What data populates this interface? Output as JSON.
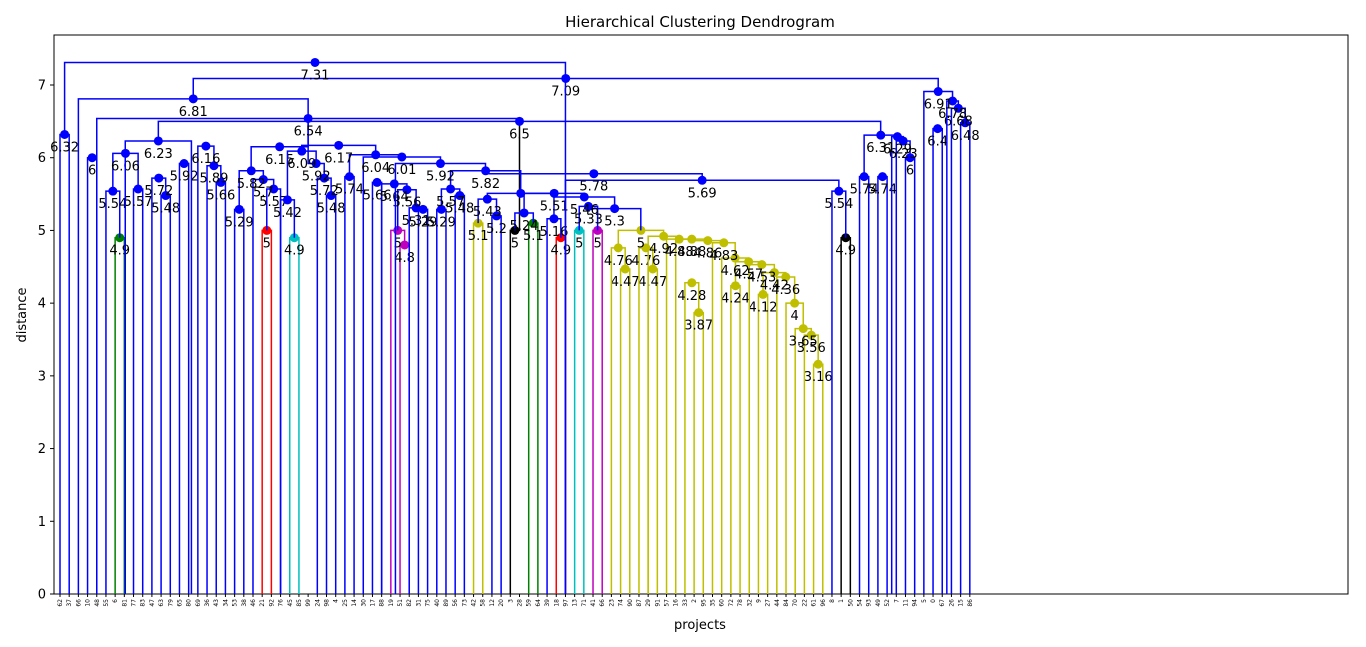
{
  "chart_data": {
    "type": "dendrogram",
    "title": "Hierarchical Clustering Dendrogram",
    "xlabel": "projects",
    "ylabel": "distance",
    "ylim": [
      0,
      7.7
    ],
    "yticks": [
      0,
      1,
      2,
      3,
      4,
      5,
      6,
      7
    ],
    "leaves": [
      "62",
      "37",
      "66",
      "10",
      "48",
      "55",
      "6",
      "81",
      "77",
      "83",
      "47",
      "63",
      "79",
      "65",
      "80",
      "69",
      "36",
      "43",
      "34",
      "53",
      "38",
      "46",
      "21",
      "92",
      "76",
      "45",
      "85",
      "99",
      "24",
      "98",
      "4",
      "25",
      "14",
      "30",
      "17",
      "88",
      "19",
      "51",
      "82",
      "31",
      "75",
      "40",
      "89",
      "56",
      "73",
      "42",
      "58",
      "12",
      "20",
      "3",
      "28",
      "59",
      "64",
      "39",
      "18",
      "97",
      "13",
      "71",
      "41",
      "66",
      "23",
      "74",
      "90",
      "87",
      "29",
      "91",
      "57",
      "16",
      "33",
      "2",
      "95",
      "35",
      "60",
      "72",
      "78",
      "32",
      "9",
      "27",
      "44",
      "84",
      "70",
      "22",
      "61",
      "96",
      "8",
      "1",
      "50",
      "54",
      "93",
      "49",
      "52",
      "7",
      "11",
      "94",
      "5",
      "0",
      "67",
      "26",
      "15",
      "86"
    ],
    "colors": {
      "b": "#0000ff",
      "g": "#008000",
      "r": "#ff0000",
      "c": "#00bfbf",
      "m": "#bf00bf",
      "y": "#bfbf00",
      "k": "#000000"
    },
    "links": [
      {
        "i": 6,
        "j": 7,
        "h": 4.9,
        "c": "g",
        "label": "4.9"
      },
      {
        "i": 22,
        "j": 23,
        "h": 5.0,
        "c": "r",
        "label": "5"
      },
      {
        "i": 25,
        "j": 26,
        "h": 4.9,
        "c": "c",
        "label": "4.9"
      },
      {
        "i": 37,
        "j": 38,
        "h": 4.8,
        "c": "m",
        "label": "4.8"
      },
      {
        "i": 36,
        "j": 37.5,
        "h": 5.0,
        "c": "m",
        "label": "5"
      },
      {
        "i": 45,
        "j": 46,
        "h": 5.1,
        "c": "y",
        "label": "5.1"
      },
      {
        "i": 49,
        "j": 50,
        "h": 5.0,
        "c": "k",
        "label": "5"
      },
      {
        "i": 51,
        "j": 52,
        "h": 5.1,
        "c": "g",
        "label": "5.1"
      },
      {
        "i": 54,
        "j": 55,
        "h": 4.9,
        "c": "r",
        "label": "4.9"
      },
      {
        "i": 56,
        "j": 57,
        "h": 5.0,
        "c": "c",
        "label": "5"
      },
      {
        "i": 58,
        "j": 59,
        "h": 5.0,
        "c": "m",
        "label": "5"
      },
      {
        "i": 61,
        "j": 62,
        "h": 4.47,
        "c": "y",
        "label": "4.47"
      },
      {
        "i": 60,
        "j": 61.5,
        "h": 4.76,
        "c": "y",
        "label": "4.76"
      },
      {
        "i": 64,
        "j": 65,
        "h": 4.47,
        "c": "y",
        "label": "4.47"
      },
      {
        "i": 63,
        "j": 64.5,
        "h": 4.76,
        "c": "y",
        "label": "4.76"
      },
      {
        "i": 69,
        "j": 70,
        "h": 3.87,
        "c": "y",
        "label": "3.87"
      },
      {
        "i": 68,
        "j": 69.5,
        "h": 4.28,
        "c": "y",
        "label": "4.28"
      },
      {
        "i": 73,
        "j": 74,
        "h": 4.24,
        "c": "y",
        "label": "4.24"
      },
      {
        "i": 76,
        "j": 77,
        "h": 4.12,
        "c": "y",
        "label": "4.12"
      },
      {
        "i": 82,
        "j": 83,
        "h": 3.16,
        "c": "y",
        "label": "3.16"
      },
      {
        "i": 81,
        "j": 82.5,
        "h": 3.56,
        "c": "y",
        "label": "3.56"
      },
      {
        "i": 80,
        "j": 81.75,
        "h": 3.65,
        "c": "y",
        "label": "3.65"
      },
      {
        "i": 79,
        "j": 80.875,
        "h": 4.0,
        "c": "y",
        "label": "4"
      },
      {
        "i": 78,
        "j": 79.94,
        "h": 4.36,
        "c": "y",
        "label": "4.36"
      },
      {
        "i": 76.5,
        "j": 78.97,
        "h": 4.42,
        "c": "y",
        "label": "4.42"
      },
      {
        "i": 75,
        "j": 77.73,
        "h": 4.53,
        "c": "y",
        "label": "4.53"
      },
      {
        "i": 73.5,
        "j": 76.37,
        "h": 4.57,
        "c": "y",
        "label": "4.57"
      },
      {
        "i": 72,
        "j": 74.93,
        "h": 4.62,
        "c": "y",
        "label": "4.62"
      },
      {
        "i": 71,
        "j": 73.47,
        "h": 4.83,
        "c": "y",
        "label": "4.83"
      },
      {
        "i": 68.75,
        "j": 72.23,
        "h": 4.86,
        "c": "y",
        "label": "4.86"
      },
      {
        "i": 67,
        "j": 70.49,
        "h": 4.88,
        "c": "y",
        "label": "4.88"
      },
      {
        "i": 66,
        "j": 68.75,
        "h": 4.88,
        "c": "y",
        "label": "4.88"
      },
      {
        "i": 64.0,
        "j": 67.37,
        "h": 4.92,
        "c": "y",
        "label": "4.92"
      },
      {
        "i": 60.75,
        "j": 65.68,
        "h": 5.0,
        "c": "y",
        "label": "5"
      },
      {
        "i": 85,
        "j": 86,
        "h": 4.9,
        "c": "k",
        "label": "4.9"
      },
      {
        "i": 0,
        "j": 1,
        "h": 6.32,
        "c": "b",
        "label": "6.32"
      },
      {
        "i": 3,
        "j": 4,
        "h": 6.0,
        "c": "b",
        "label": "6"
      },
      {
        "i": 5,
        "j": 6.5,
        "h": 5.54,
        "c": "b",
        "label": "5.54"
      },
      {
        "i": 8,
        "j": 9,
        "h": 5.57,
        "c": "b",
        "label": "5.57"
      },
      {
        "i": 11,
        "j": 12,
        "h": 5.48,
        "c": "b",
        "label": "5.48"
      },
      {
        "i": 10,
        "j": 11.5,
        "h": 5.72,
        "c": "b",
        "label": "5.72"
      },
      {
        "i": 5.75,
        "j": 8.5,
        "h": 6.06,
        "c": "b",
        "label": "6.06"
      },
      {
        "i": 13,
        "j": 14,
        "h": 5.92,
        "c": "b",
        "label": "5.92"
      },
      {
        "i": 17,
        "j": 18,
        "h": 5.66,
        "c": "b",
        "label": "5.66"
      },
      {
        "i": 16,
        "j": 17.5,
        "h": 5.89,
        "c": "b",
        "label": "5.89"
      },
      {
        "i": 15,
        "j": 16.75,
        "h": 6.16,
        "c": "b",
        "label": "6.16"
      },
      {
        "i": 19,
        "j": 20,
        "h": 5.29,
        "c": "b",
        "label": "5.29"
      },
      {
        "i": 22.5,
        "j": 24,
        "h": 5.57,
        "c": "b",
        "label": "5.57"
      },
      {
        "i": 21,
        "j": 23.25,
        "h": 5.7,
        "c": "b",
        "label": "5.7"
      },
      {
        "i": 19.5,
        "j": 22.125,
        "h": 5.82,
        "c": "b",
        "label": "5.82"
      },
      {
        "i": 20.8,
        "j": 27,
        "h": 6.15,
        "c": "b",
        "label": "6.15"
      },
      {
        "i": 24,
        "j": 25.5,
        "h": 5.42,
        "c": "b",
        "label": "5.42"
      },
      {
        "i": 29,
        "j": 30,
        "h": 5.48,
        "c": "b",
        "label": "5.48"
      },
      {
        "i": 28,
        "j": 29.5,
        "h": 5.72,
        "c": "b",
        "label": "5.72"
      },
      {
        "i": 27,
        "j": 28.75,
        "h": 5.92,
        "c": "b",
        "label": "5.92"
      },
      {
        "i": 24.75,
        "j": 27.87,
        "h": 6.09,
        "c": "b",
        "label": "6.09"
      },
      {
        "i": 31,
        "j": 32,
        "h": 5.74,
        "c": "b",
        "label": "5.74"
      },
      {
        "i": 34,
        "j": 35,
        "h": 5.66,
        "c": "b",
        "label": "5.66"
      },
      {
        "i": 39,
        "j": 40,
        "h": 5.29,
        "c": "b",
        "label": "5.29"
      },
      {
        "i": 38,
        "j": 39.5,
        "h": 5.31,
        "c": "b",
        "label": "5.31"
      },
      {
        "i": 36.75,
        "j": 38.75,
        "h": 5.56,
        "c": "b",
        "label": "5.56"
      },
      {
        "i": 35,
        "j": 37.75,
        "h": 5.64,
        "c": "b",
        "label": "5.64"
      },
      {
        "i": 41,
        "j": 42,
        "h": 5.29,
        "c": "b",
        "label": "5.29"
      },
      {
        "i": 43,
        "j": 44,
        "h": 5.48,
        "c": "b",
        "label": "5.48"
      },
      {
        "i": 41.5,
        "j": 43.5,
        "h": 5.57,
        "c": "b",
        "label": "5.57"
      },
      {
        "i": 47,
        "j": 48,
        "h": 5.2,
        "c": "b",
        "label": "5.2"
      },
      {
        "i": 45.5,
        "j": 47.5,
        "h": 5.43,
        "c": "b",
        "label": "5.43"
      },
      {
        "i": 49.5,
        "j": 51.5,
        "h": 5.24,
        "c": "b",
        "label": "5.24"
      },
      {
        "i": 53,
        "j": 54.5,
        "h": 5.16,
        "c": "b",
        "label": "5.16"
      },
      {
        "i": 56.5,
        "j": 58.5,
        "h": 5.33,
        "c": "b",
        "label": "5.33"
      },
      {
        "i": 57.5,
        "j": 63.2,
        "h": 5.3,
        "c": "b",
        "label": "5.3"
      },
      {
        "i": 53.75,
        "j": 60.35,
        "h": 5.46,
        "c": "b",
        "label": "5.46"
      },
      {
        "i": 50.5,
        "j": 57.05,
        "h": 5.51,
        "c": "b",
        "label": "5.51"
      },
      {
        "i": 46.5,
        "j": 53.77,
        "h": 5.51,
        "c": "b",
        "label": ""
      },
      {
        "i": 42.5,
        "j": 50.13,
        "h": 5.82,
        "c": "b",
        "label": "5.82"
      },
      {
        "i": 84,
        "j": 85.5,
        "h": 5.54,
        "c": "b",
        "label": "5.54"
      },
      {
        "i": 55,
        "j": 84.75,
        "h": 5.69,
        "c": "b",
        "label": "5.69"
      },
      {
        "i": 36.5,
        "j": 46.3,
        "h": 5.92,
        "c": "b",
        "label": "5.92"
      },
      {
        "i": 46.3,
        "j": 69.88,
        "h": 5.78,
        "c": "b",
        "label": "5.78"
      },
      {
        "i": 33,
        "j": 41.4,
        "h": 6.01,
        "c": "b",
        "label": "6.01"
      },
      {
        "i": 31.5,
        "j": 37.2,
        "h": 6.04,
        "c": "b",
        "label": "6.04"
      },
      {
        "i": 26.3,
        "j": 34.35,
        "h": 6.17,
        "c": "b",
        "label": "6.17"
      },
      {
        "i": 7.1,
        "j": 14.3,
        "h": 6.23,
        "c": "b",
        "label": "6.23"
      },
      {
        "i": 87,
        "j": 88,
        "h": 5.74,
        "c": "b",
        "label": "5.74"
      },
      {
        "i": 89,
        "j": 90,
        "h": 5.74,
        "c": "b",
        "label": "5.74"
      },
      {
        "i": 92,
        "j": 93,
        "h": 6.0,
        "c": "b",
        "label": "6"
      },
      {
        "i": 91,
        "j": 92.5,
        "h": 6.23,
        "c": "b",
        "label": "6.23"
      },
      {
        "i": 90.5,
        "j": 91.75,
        "h": 6.29,
        "c": "b",
        "label": "6.29"
      },
      {
        "i": 87.5,
        "j": 91.12,
        "h": 6.31,
        "c": "b",
        "label": "6.31"
      },
      {
        "i": 10.7,
        "j": 89.3,
        "h": 6.5,
        "c": "b",
        "label": "6.5"
      },
      {
        "i": 4,
        "j": 50,
        "h": 6.54,
        "c": "b",
        "label": "6.54"
      },
      {
        "i": 2,
        "j": 27,
        "h": 6.81,
        "c": "b",
        "label": "6.81"
      },
      {
        "i": 95,
        "j": 96,
        "h": 6.4,
        "c": "b",
        "label": "6.4"
      },
      {
        "i": 98,
        "j": 99,
        "h": 6.48,
        "c": "b",
        "label": "6.48"
      },
      {
        "i": 97,
        "j": 98.5,
        "h": 6.68,
        "c": "b",
        "label": "6.68"
      },
      {
        "i": 96.5,
        "j": 97.75,
        "h": 6.78,
        "c": "b",
        "label": "6.78"
      },
      {
        "i": 94,
        "j": 97.12,
        "h": 6.91,
        "c": "b",
        "label": "6.91"
      },
      {
        "i": 14.5,
        "j": 95.56,
        "h": 7.09,
        "c": "b",
        "label": "7.09"
      },
      {
        "i": 0.5,
        "j": 55,
        "h": 7.31,
        "c": "b",
        "label": "7.31"
      }
    ]
  }
}
